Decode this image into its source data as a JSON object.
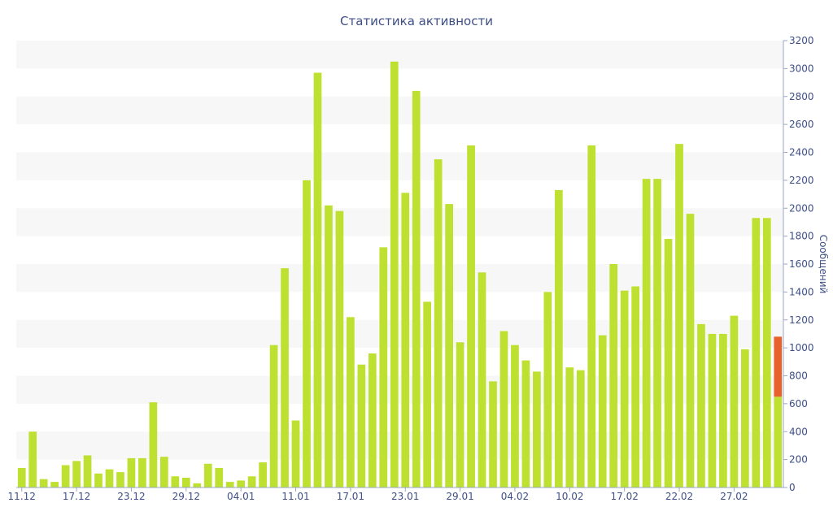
{
  "chart_data": {
    "type": "bar",
    "title": "Статистика активности",
    "xlabel": "",
    "ylabel": "Сообщений",
    "ylim": [
      0,
      3200
    ],
    "y_ticks": [
      0,
      200,
      400,
      600,
      800,
      1000,
      1200,
      1400,
      1600,
      1800,
      2000,
      2200,
      2400,
      2600,
      2800,
      3000,
      3200
    ],
    "y_axis_side": "right",
    "grid": "alternating horizontal bands",
    "x_tick_labels": [
      {
        "index": 0,
        "label": "11.12"
      },
      {
        "index": 5,
        "label": "17.12"
      },
      {
        "index": 10,
        "label": "23.12"
      },
      {
        "index": 15,
        "label": "29.12"
      },
      {
        "index": 20,
        "label": "04.01"
      },
      {
        "index": 25,
        "label": "11.01"
      },
      {
        "index": 30,
        "label": "17.01"
      },
      {
        "index": 35,
        "label": "23.01"
      },
      {
        "index": 40,
        "label": "29.01"
      },
      {
        "index": 45,
        "label": "04.02"
      },
      {
        "index": 50,
        "label": "10.02"
      },
      {
        "index": 55,
        "label": "17.02"
      },
      {
        "index": 60,
        "label": "22.02"
      },
      {
        "index": 65,
        "label": "27.02"
      }
    ],
    "colors": {
      "bar": "#bde031",
      "highlight": "#e8612c",
      "band": "#f7f7f7",
      "text": "#3d4f86",
      "axis": "#9aa6c4"
    },
    "series": [
      {
        "values": [
          140,
          400,
          60,
          40,
          160,
          190,
          230,
          100,
          130,
          110,
          210,
          210,
          610,
          220,
          80,
          70,
          30,
          170,
          140,
          40,
          50,
          80,
          180,
          1020,
          1570,
          480,
          2200,
          2970,
          2020,
          1980,
          1220,
          880,
          960,
          1720,
          3050,
          2110,
          2840,
          1330,
          2350,
          2030,
          1040,
          2450,
          1540,
          760,
          1120,
          1020,
          910,
          830,
          1400,
          2130,
          860,
          840,
          2450,
          1090,
          1600,
          1410,
          1440,
          2210,
          2210,
          1780,
          2460,
          1960,
          1170,
          1100,
          1100,
          1230,
          990,
          1930,
          1930,
          650
        ],
        "highlight_top": [
          null,
          null,
          null,
          null,
          null,
          null,
          null,
          null,
          null,
          null,
          null,
          null,
          null,
          null,
          null,
          null,
          null,
          null,
          null,
          null,
          null,
          null,
          null,
          null,
          null,
          null,
          null,
          null,
          null,
          null,
          null,
          null,
          null,
          null,
          null,
          null,
          null,
          null,
          null,
          null,
          null,
          null,
          null,
          null,
          null,
          null,
          null,
          null,
          null,
          null,
          null,
          null,
          null,
          null,
          null,
          null,
          null,
          null,
          null,
          null,
          null,
          null,
          null,
          null,
          null,
          null,
          null,
          null,
          null,
          1080
        ]
      }
    ]
  }
}
